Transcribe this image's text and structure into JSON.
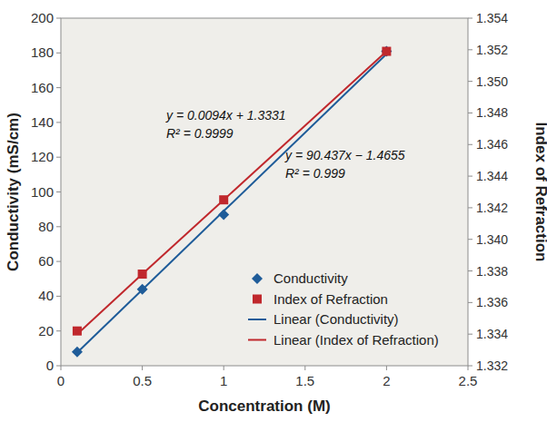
{
  "chart_data": {
    "type": "scatter",
    "x_label": "Concentration (M)",
    "y_label": "Conductivity (mS/cm)",
    "y2_label": "Index of Refraction",
    "x": [
      0.1,
      0.5,
      1,
      2
    ],
    "xlim": [
      0,
      2.5
    ],
    "xticks": [
      0,
      0.5,
      1,
      1.5,
      2,
      2.5
    ],
    "ylim": [
      0,
      200
    ],
    "yticks": [
      0,
      20,
      40,
      60,
      80,
      100,
      120,
      140,
      160,
      180,
      200
    ],
    "y2lim": [
      1.332,
      1.354
    ],
    "y2ticks": [
      1.332,
      1.334,
      1.336,
      1.338,
      {
        "value": 1.34,
        "label": "1.340"
      },
      1.342,
      1.344,
      1.346,
      1.348,
      {
        "value": 1.35,
        "label": "1.350"
      },
      1.352,
      1.354
    ],
    "grid": false,
    "legend": "lower right",
    "annotations": [
      "y = 0.0094x + 1.3331",
      "R² = 0.9999",
      "y = 90.437x − 1.4655",
      "R² = 0.999"
    ],
    "series": [
      {
        "name": "Conductivity",
        "type": "scatter",
        "marker": "diamond",
        "color": "#1f5c99",
        "values": [
          8,
          44,
          87,
          181
        ]
      },
      {
        "name": "Index of Refraction",
        "type": "scatter",
        "marker": "square",
        "color": "#c0282d",
        "axis": "y2",
        "values": [
          1.3342,
          1.3378,
          1.3425,
          1.3519
        ]
      },
      {
        "name": "Linear (Conductivity)",
        "type": "line",
        "marker": "none",
        "line_style": "solid",
        "color": "#1f5c99",
        "values": [
          7.6,
          43.7,
          89,
          179.4
        ]
      },
      {
        "name": "Linear (Index of Refraction)",
        "type": "line",
        "marker": "none",
        "line_style": "solid",
        "color": "#c0282d",
        "axis": "y2",
        "values": [
          1.334,
          1.3378,
          1.3425,
          1.3519
        ]
      }
    ]
  }
}
